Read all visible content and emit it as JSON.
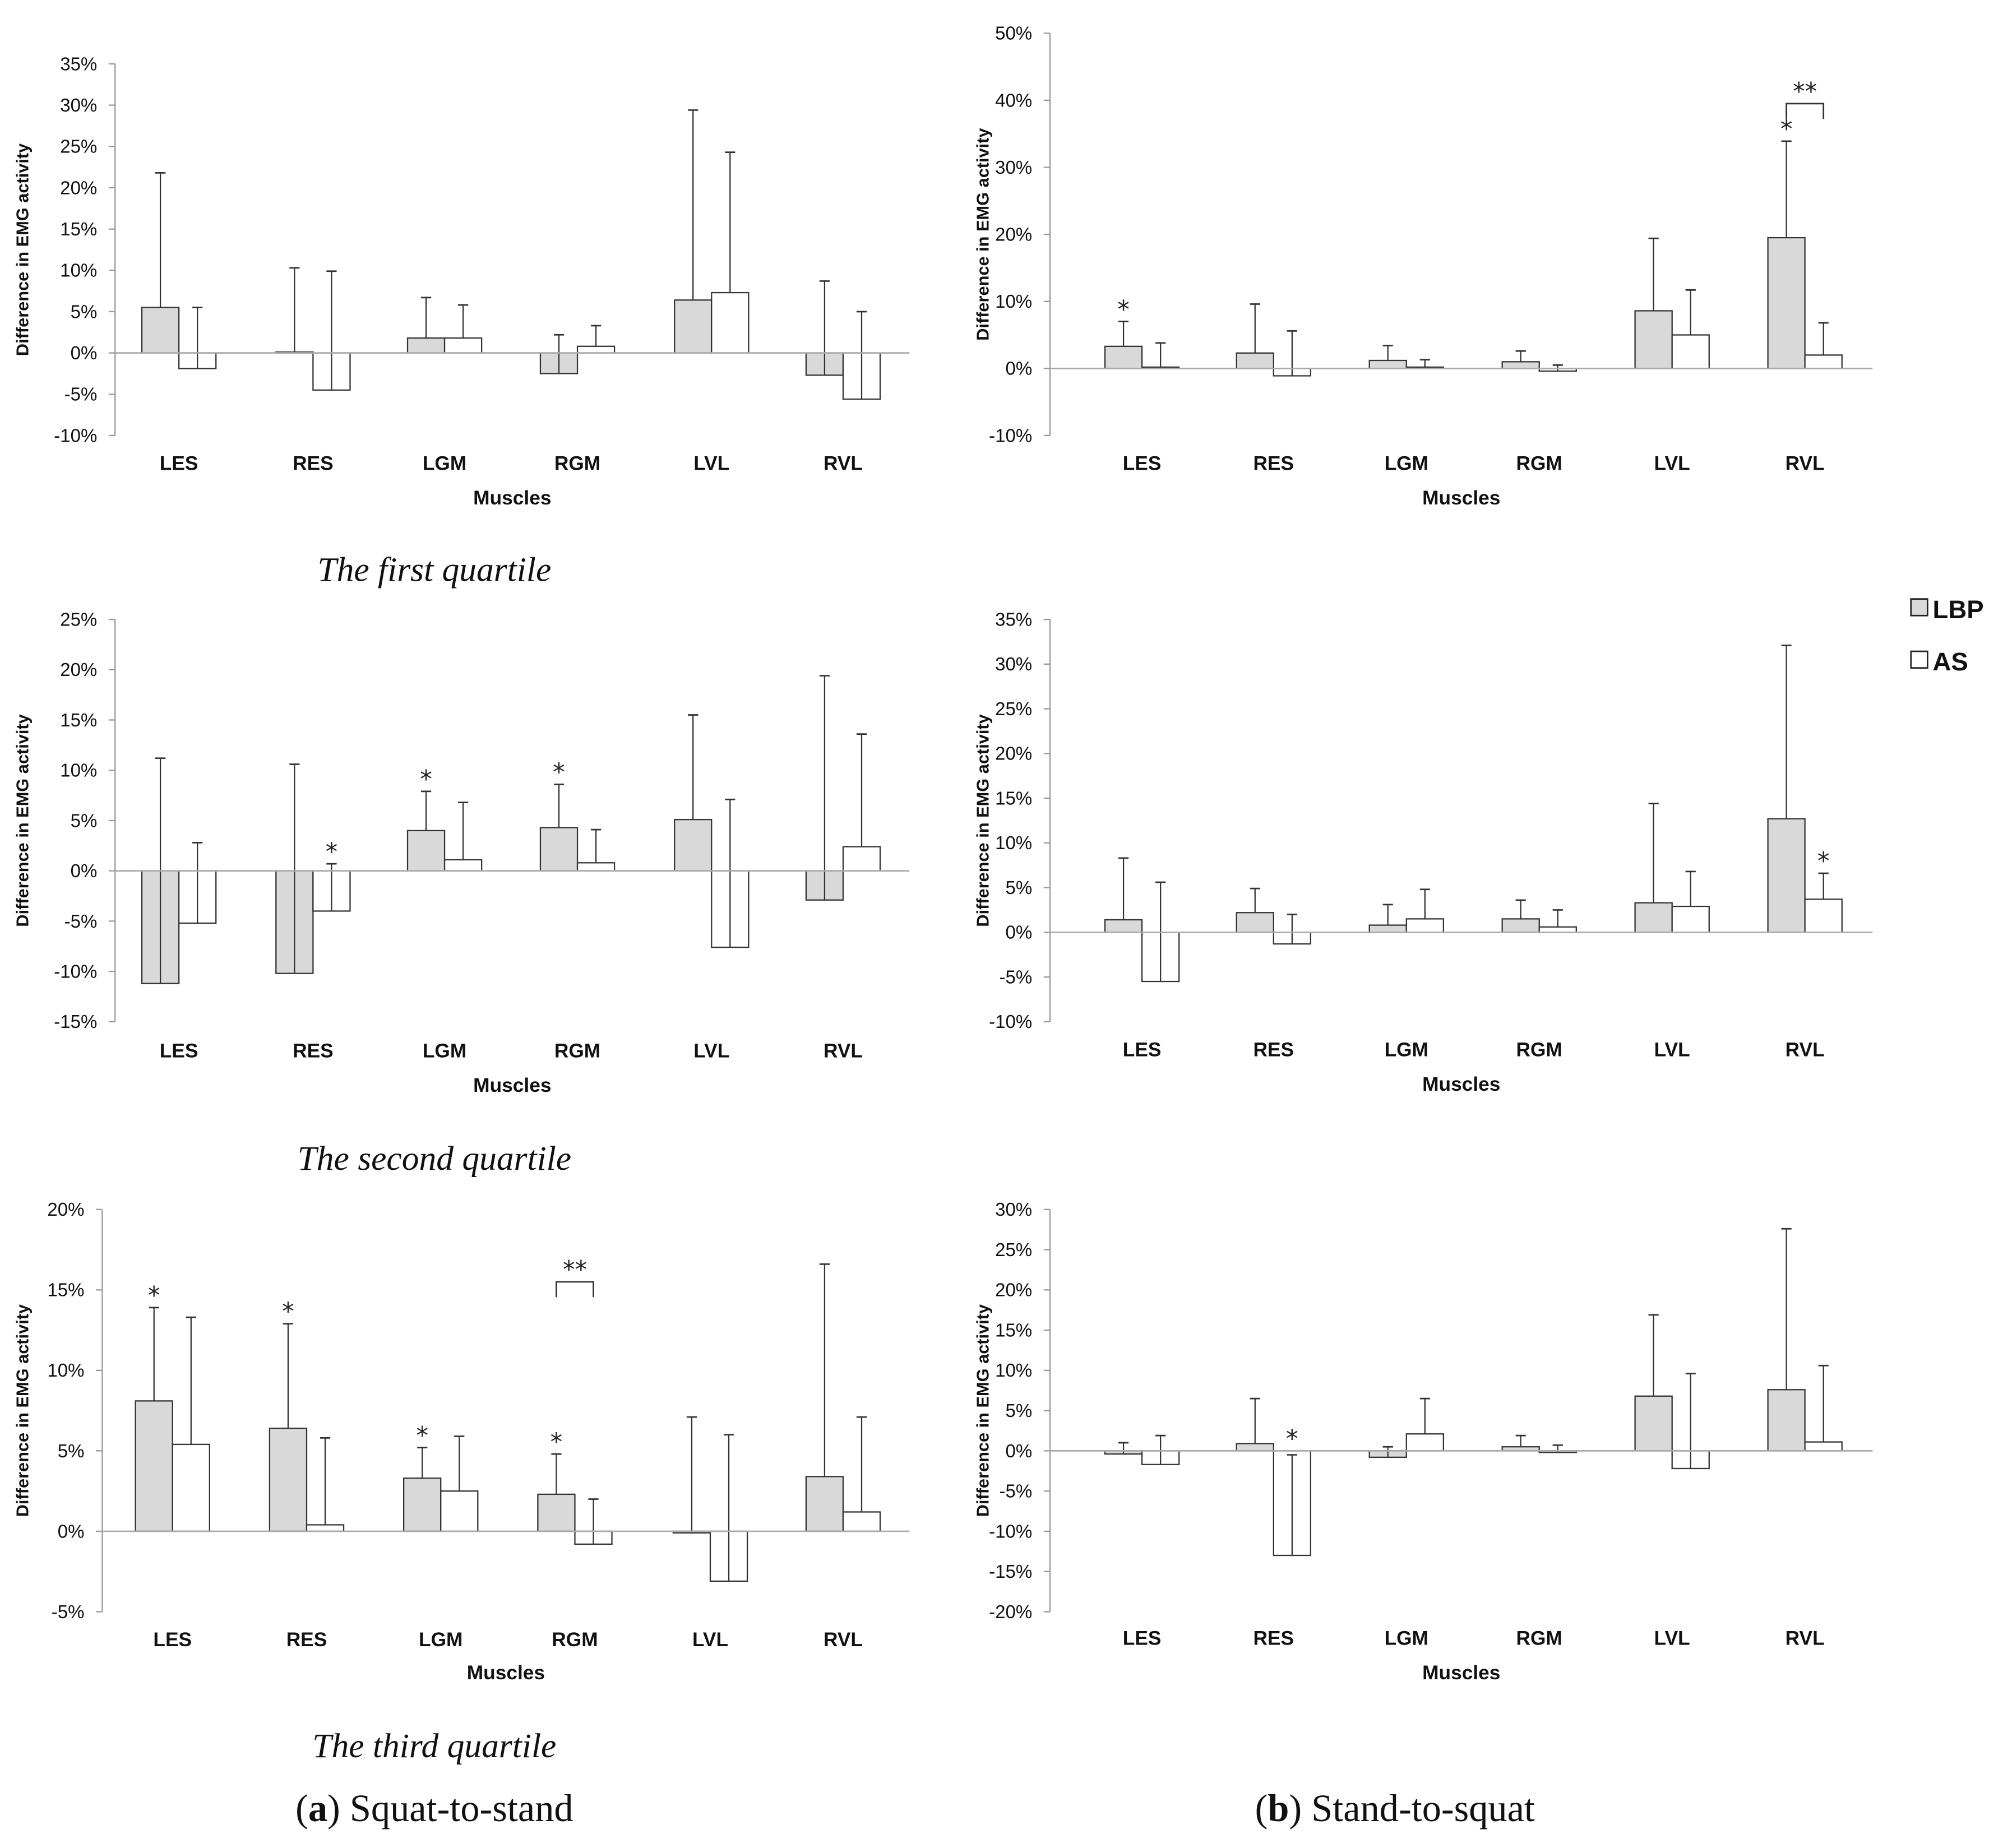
{
  "legend": {
    "series": [
      {
        "name": "LBP",
        "color": "#d9d9d9"
      },
      {
        "name": "AS",
        "color": "#ffffff"
      }
    ]
  },
  "captions": {
    "q1": "The first quartile",
    "q2": "The second quartile",
    "q3": "The third quartile"
  },
  "subfigures": {
    "a": {
      "letter": "a",
      "title": "Squat-to-stand"
    },
    "b": {
      "letter": "b",
      "title": "Stand-to-squat"
    }
  },
  "chart_data": [
    {
      "id": "a1",
      "type": "bar",
      "panel": "(a) Squat-to-stand",
      "quartile": "The first quartile",
      "xlabel": "Muscles",
      "ylabel": "Difference in EMG activity",
      "ylim": [
        -10,
        35
      ],
      "ytick_step": 5,
      "yticks": [
        "-10%",
        "-5%",
        "0%",
        "5%",
        "10%",
        "15%",
        "20%",
        "25%",
        "30%",
        "35%"
      ],
      "categories": [
        "LES",
        "RES",
        "LGM",
        "RGM",
        "LVL",
        "RVL"
      ],
      "series": [
        {
          "name": "LBP",
          "values": [
            5.5,
            0.1,
            1.8,
            -2.5,
            6.4,
            -2.7
          ],
          "error_top": [
            21.8,
            10.3,
            6.7,
            2.2,
            29.4,
            8.7
          ]
        },
        {
          "name": "AS",
          "values": [
            -1.9,
            -4.5,
            1.8,
            0.8,
            7.3,
            -5.6
          ],
          "error_top": [
            5.5,
            9.9,
            5.8,
            3.3,
            24.3,
            5.0
          ]
        }
      ],
      "stars": [],
      "brackets": []
    },
    {
      "id": "b1",
      "type": "bar",
      "panel": "(b) Stand-to-squat",
      "quartile": "The first quartile",
      "xlabel": "Muscles",
      "ylabel": "Difference in EMG activity",
      "ylim": [
        -10,
        50
      ],
      "ytick_step": 10,
      "yticks": [
        "-10%",
        "0%",
        "10%",
        "20%",
        "30%",
        "40%",
        "50%"
      ],
      "categories": [
        "LES",
        "RES",
        "LGM",
        "RGM",
        "LVL",
        "RVL"
      ],
      "series": [
        {
          "name": "LBP",
          "values": [
            3.3,
            2.3,
            1.2,
            1.0,
            8.6,
            19.5
          ],
          "error_top": [
            7.0,
            9.6,
            3.4,
            2.6,
            19.4,
            33.9
          ]
        },
        {
          "name": "AS",
          "values": [
            0.2,
            -1.1,
            0.2,
            -0.4,
            5.0,
            2.0
          ],
          "error_top": [
            3.8,
            5.6,
            1.3,
            0.5,
            11.7,
            6.8
          ]
        }
      ],
      "stars": [
        {
          "category": "LES",
          "series": "LBP",
          "label": "*"
        },
        {
          "category": "RVL",
          "series": "LBP",
          "label": "*"
        }
      ],
      "brackets": [
        {
          "category": "RVL",
          "level": 39.5,
          "label": "**"
        }
      ]
    },
    {
      "id": "a2",
      "type": "bar",
      "panel": "(a) Squat-to-stand",
      "quartile": "The second quartile",
      "xlabel": "Muscles",
      "ylabel": "Difference in EMG activity",
      "ylim": [
        -15,
        25
      ],
      "ytick_step": 5,
      "yticks": [
        "-15%",
        "-10%",
        "-5%",
        "0%",
        "5%",
        "10%",
        "15%",
        "20%",
        "25%"
      ],
      "categories": [
        "LES",
        "RES",
        "LGM",
        "RGM",
        "LVL",
        "RVL"
      ],
      "series": [
        {
          "name": "LBP",
          "values": [
            -11.2,
            -10.2,
            4.0,
            4.3,
            5.1,
            -2.9
          ],
          "error_top": [
            11.2,
            10.6,
            7.9,
            8.6,
            15.5,
            19.4
          ]
        },
        {
          "name": "AS",
          "values": [
            -5.2,
            -4.0,
            1.1,
            0.8,
            -7.6,
            2.4
          ],
          "error_top": [
            2.8,
            0.7,
            6.8,
            4.1,
            7.1,
            13.6
          ]
        }
      ],
      "stars": [
        {
          "category": "LGM",
          "series": "LBP",
          "label": "*"
        },
        {
          "category": "RGM",
          "series": "LBP",
          "label": "*"
        },
        {
          "category": "RES",
          "series": "AS",
          "label": "*"
        }
      ],
      "brackets": []
    },
    {
      "id": "b2",
      "type": "bar",
      "panel": "(b) Stand-to-squat",
      "quartile": "The second quartile",
      "xlabel": "Muscles",
      "ylabel": "Difference in EMG activity",
      "ylim": [
        -10,
        35
      ],
      "ytick_step": 5,
      "yticks": [
        "-10%",
        "-5%",
        "0%",
        "5%",
        "10%",
        "15%",
        "20%",
        "25%",
        "30%",
        "35%"
      ],
      "categories": [
        "LES",
        "RES",
        "LGM",
        "RGM",
        "LVL",
        "RVL"
      ],
      "series": [
        {
          "name": "LBP",
          "values": [
            1.4,
            2.2,
            0.8,
            1.5,
            3.3,
            12.7
          ],
          "error_top": [
            8.3,
            4.9,
            3.1,
            3.6,
            14.4,
            32.1
          ]
        },
        {
          "name": "AS",
          "values": [
            -5.5,
            -1.3,
            1.5,
            0.6,
            2.9,
            3.7
          ],
          "error_top": [
            5.6,
            2.0,
            4.8,
            2.5,
            6.8,
            6.6
          ]
        }
      ],
      "stars": [
        {
          "category": "RVL",
          "series": "AS",
          "label": "*"
        }
      ],
      "brackets": []
    },
    {
      "id": "a3",
      "type": "bar",
      "panel": "(a) Squat-to-stand",
      "quartile": "The third quartile",
      "xlabel": "Muscles",
      "ylabel": "Difference in EMG activity",
      "ylim": [
        -5,
        20
      ],
      "ytick_step": 5,
      "yticks": [
        "-5%",
        "0%",
        "5%",
        "10%",
        "15%",
        "20%"
      ],
      "categories": [
        "LES",
        "RES",
        "LGM",
        "RGM",
        "LVL",
        "RVL"
      ],
      "series": [
        {
          "name": "LBP",
          "values": [
            8.1,
            6.4,
            3.3,
            2.3,
            -0.1,
            3.4
          ],
          "error_top": [
            13.9,
            12.9,
            5.2,
            4.8,
            7.1,
            16.6
          ]
        },
        {
          "name": "AS",
          "values": [
            5.4,
            0.4,
            2.5,
            -0.8,
            -3.1,
            1.2
          ],
          "error_top": [
            13.3,
            5.8,
            5.9,
            2.0,
            6.0,
            7.1
          ]
        }
      ],
      "stars": [
        {
          "category": "LES",
          "series": "LBP",
          "label": "*"
        },
        {
          "category": "RES",
          "series": "LBP",
          "label": "*"
        },
        {
          "category": "LGM",
          "series": "LBP",
          "label": "*"
        },
        {
          "category": "RGM",
          "series": "LBP",
          "label": "*"
        }
      ],
      "brackets": [
        {
          "category": "RGM",
          "level": 15.5,
          "label": "**"
        }
      ]
    },
    {
      "id": "b3",
      "type": "bar",
      "panel": "(b) Stand-to-squat",
      "quartile": "The third quartile",
      "xlabel": "Muscles",
      "ylabel": "Difference in EMG activity",
      "ylim": [
        -20,
        30
      ],
      "ytick_step": 5,
      "yticks": [
        "-20%",
        "-15%",
        "-10%",
        "-5%",
        "0%",
        "5%",
        "10%",
        "15%",
        "20%",
        "25%",
        "30%"
      ],
      "categories": [
        "LES",
        "RES",
        "LGM",
        "RGM",
        "LVL",
        "RVL"
      ],
      "series": [
        {
          "name": "LBP",
          "values": [
            -0.4,
            0.9,
            -0.8,
            0.5,
            6.8,
            7.6
          ],
          "error_top": [
            1.0,
            6.5,
            0.5,
            1.9,
            16.9,
            27.6
          ]
        },
        {
          "name": "AS",
          "values": [
            -1.7,
            -13.0,
            2.1,
            -0.2,
            -2.2,
            1.1
          ],
          "error_top": [
            1.9,
            -0.5,
            6.5,
            0.7,
            9.6,
            10.6
          ]
        }
      ],
      "stars": [
        {
          "category": "RES",
          "series": "AS",
          "label": "*"
        }
      ],
      "brackets": []
    }
  ]
}
